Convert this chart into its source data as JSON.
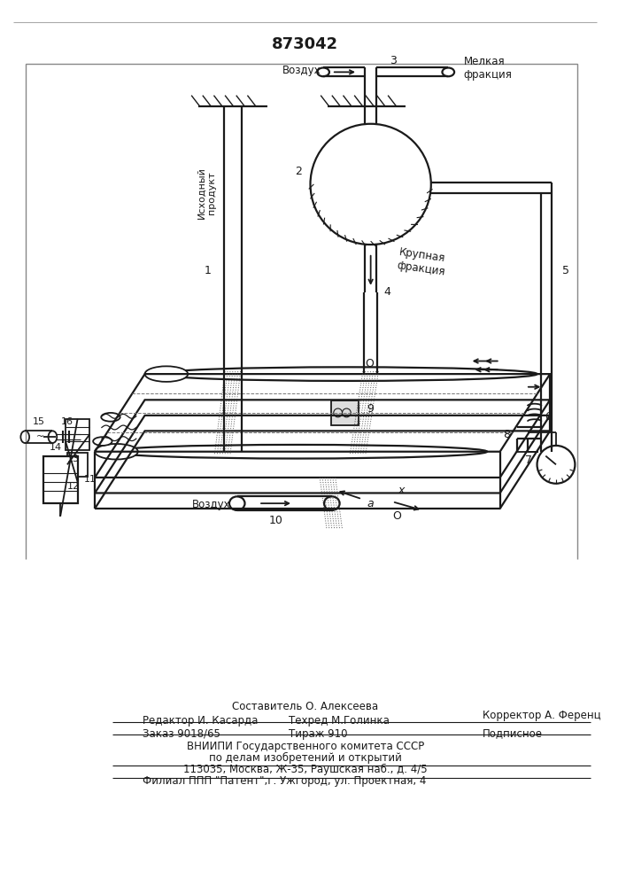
{
  "title": "873042",
  "title_fontsize": 13,
  "bg_color": "#ffffff",
  "line_color": "#1a1a1a",
  "lw": 1.3,
  "footer": {
    "sestavitel": "Составитель О. Алексеева",
    "redaktor": "Редактор И. Касарда",
    "tehred": "Техред М.Голинка",
    "korrektor": "Корректор А. Ференц",
    "zakaz": "Заказ 9018/65",
    "tirazh": "Тираж 910",
    "podpisnoe": "Подписное",
    "vniip1": "ВНИИПИ Государственного комитета СССР",
    "vniip2": "по делам изобретений и открытий",
    "addr": "113035, Москва, Ж-35, Раушская наб., д. 4/5",
    "filial": "Филиал ППП \"Патент\",г. Ужгород, ул. Проектная, 4"
  }
}
